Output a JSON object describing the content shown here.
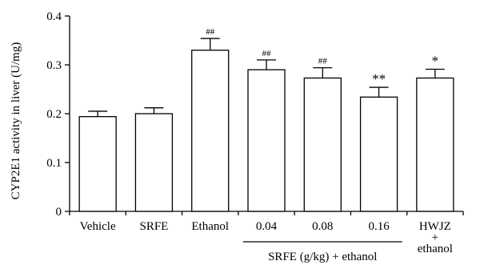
{
  "chart_data": {
    "type": "bar",
    "ylabel": "CYP2E1 activity in liver (U/mg)",
    "xlabel": "",
    "ylim": [
      0,
      0.4
    ],
    "yticks": [
      0,
      0.1,
      0.2,
      0.3,
      0.4
    ],
    "ytick_labels": [
      "0",
      "0.1",
      "0.2",
      "0.3",
      "0.4"
    ],
    "categories": [
      "Vehicle",
      "SRFE",
      "Ethanol",
      "0.04",
      "0.08",
      "0.16",
      "HWJZ\n+\nethanol"
    ],
    "values": [
      0.194,
      0.2,
      0.33,
      0.29,
      0.273,
      0.234,
      0.273
    ],
    "errors": [
      0.011,
      0.012,
      0.024,
      0.02,
      0.021,
      0.02,
      0.018
    ],
    "annotations": [
      "",
      "",
      "##",
      "##",
      "##",
      "**",
      "*"
    ],
    "group_label": {
      "text": "SRFE (g/kg) + ethanol",
      "categories": [
        "0.04",
        "0.08",
        "0.16"
      ]
    },
    "colors": {
      "bar_fill": "#ffffff",
      "bar_stroke": "#000000"
    },
    "grid": false
  }
}
